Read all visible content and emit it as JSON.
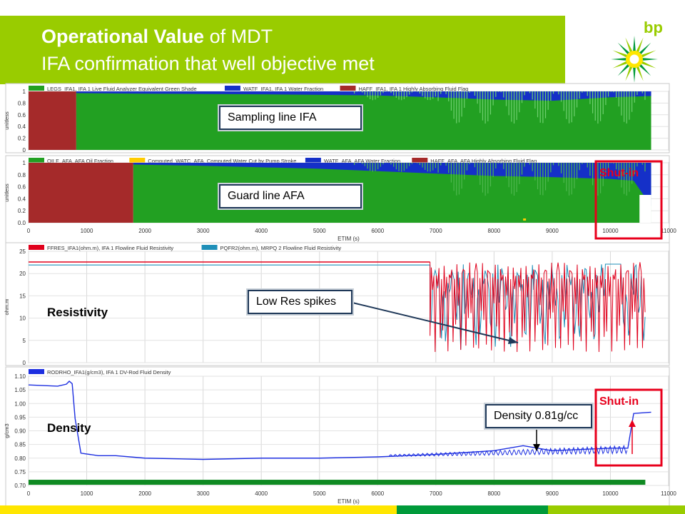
{
  "header": {
    "title_bold": "Operational Value",
    "title_rest": " of MDT",
    "subtitle": "IFA confirmation that well objective met",
    "logo": "bp"
  },
  "colors": {
    "title_bar": "#99cc00",
    "green_fluid": "#22a022",
    "water_blue": "#1530c8",
    "absorb_red": "#a52a2a",
    "resistivity_red": "#e0001c",
    "resistivity_blue": "#1f8fb8",
    "density_blue": "#1c2ee0",
    "shutin_red": "#e8001c"
  },
  "annotations": {
    "sampling_line": "Sampling line IFA",
    "guard_line": "Guard line AFA",
    "low_res": "Low Res spikes",
    "density": "Density 0.81g/cc",
    "shutin_top": "Shut-in",
    "shutin_bottom": "Shut-in",
    "resistivity": "Resistivity",
    "density_side": "Density"
  },
  "chart_data": [
    {
      "type": "area",
      "legend": [
        "LEGS_IFA1, IFA 1 Live Fluid Analyzer Equivalent Green Shade",
        "WATF_IFA1, IFA 1 Water Fraction",
        "HAFF_IFA1, IFA 1 Highly Absorbing Fluid Flag"
      ],
      "ylabel": "unitless",
      "yticks": [
        "1",
        "0.8",
        "0.6",
        "0.4",
        "0.2",
        "0"
      ],
      "ylim": [
        0,
        1
      ],
      "xlim": [
        0,
        11000
      ],
      "segments": [
        {
          "name": "HAFF",
          "from": 0,
          "to": 820
        },
        {
          "name": "LEGS",
          "from": 820,
          "to": 10700
        }
      ],
      "water_fraction": {
        "x": [
          820,
          2000,
          4000,
          6000,
          7000,
          8000,
          9000,
          10000,
          10700
        ],
        "y": [
          0.03,
          0.04,
          0.05,
          0.07,
          0.1,
          0.14,
          0.16,
          0.1,
          0.08
        ]
      }
    },
    {
      "type": "area",
      "legend": [
        "OILF_AFA, AFA Oil Fraction",
        "Computed_WATC_AFA, Computed Water Cut by Pump Stroke",
        "WATF_AFA, AFA Water Fraction",
        "HAFF_AFA, AFA Highly Absorbing Fluid Flag"
      ],
      "ylabel": "unitless",
      "yticks": [
        "1",
        "0.8",
        "0.6",
        "0.4",
        "0.2",
        "0.0"
      ],
      "ylim": [
        0,
        1
      ],
      "xlim": [
        0,
        11000
      ],
      "xticks": [
        0,
        1000,
        2000,
        3000,
        4000,
        5000,
        6000,
        7000,
        8000,
        9000,
        10000,
        11000
      ],
      "xlabel": "ETIM (s)",
      "segments": [
        {
          "name": "HAFF",
          "from": 0,
          "to": 1800
        },
        {
          "name": "OILF",
          "from": 1800,
          "to": 10700
        }
      ],
      "water_fraction": {
        "x": [
          1800,
          3000,
          5000,
          7000,
          8000,
          9000,
          10000,
          10400,
          10700
        ],
        "y": [
          0.03,
          0.05,
          0.1,
          0.18,
          0.22,
          0.24,
          0.27,
          0.3,
          0.72
        ]
      }
    },
    {
      "type": "line",
      "legend": [
        "FFRES_IFA1(ohm.m), IFA 1 Flowline Fluid Resistivity",
        "PQFR2(ohm.m), MRPQ 2 Flowline Fluid Resistivity"
      ],
      "ylabel": "ohm.m",
      "yticks": [
        "25",
        "20",
        "15",
        "10",
        "5",
        "0"
      ],
      "ylim": [
        0,
        26
      ],
      "xlim": [
        0,
        11000
      ],
      "baseline": {
        "FFRES": 23.5,
        "PQFR2": 22.8
      },
      "spike_region": [
        6900,
        10600
      ],
      "spike_min": 1.5
    },
    {
      "type": "line",
      "legend": [
        "RODRHO_IFA1(g/cm3), IFA 1 DV-Rod Fluid Density"
      ],
      "ylabel": "g/cm3",
      "yticks": [
        "1.10",
        "1.05",
        "1.00",
        "0.95",
        "0.90",
        "0.85",
        "0.80",
        "0.75",
        "0.70"
      ],
      "ylim": [
        0.68,
        1.12
      ],
      "xlim": [
        0,
        11000
      ],
      "xticks": [
        0,
        1000,
        2000,
        3000,
        4000,
        5000,
        6000,
        7000,
        8000,
        9000,
        10000,
        11000
      ],
      "xlabel": "ETIM (s)",
      "x": [
        0,
        500,
        650,
        700,
        750,
        800,
        900,
        1200,
        1500,
        2000,
        3000,
        4000,
        5000,
        6000,
        6500,
        7000,
        8000,
        8500,
        9000,
        9500,
        10000,
        10300,
        10400,
        10700
      ],
      "y": [
        1.085,
        1.08,
        1.088,
        1.1,
        1.09,
        0.95,
        0.81,
        0.8,
        0.8,
        0.79,
        0.785,
        0.79,
        0.79,
        0.795,
        0.8,
        0.805,
        0.82,
        0.84,
        0.82,
        0.825,
        0.83,
        0.83,
        0.97,
        0.975
      ]
    }
  ]
}
